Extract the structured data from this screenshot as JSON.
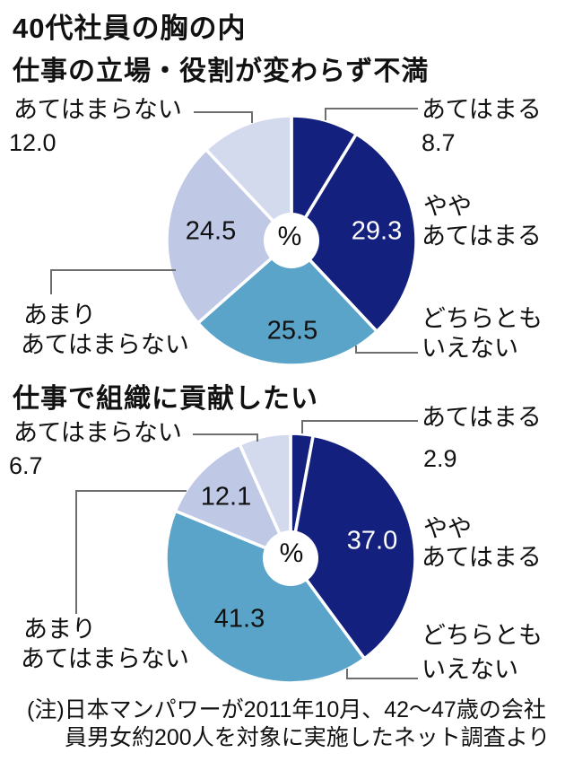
{
  "page": {
    "title": "40代社員の胸の内",
    "note": {
      "line1": "(注)日本マンパワーが2011年10月、42～47歳の会社",
      "line2": "員男女約200人を対象に実施したネット調査より"
    }
  },
  "palette": {
    "navy": "#14207e",
    "steel_blue": "#5ba4c9",
    "periwinkle": "#bfc9e6",
    "lavender": "#d4daee",
    "text": "#111111",
    "leader_line": "#6e6e6e",
    "divider": "#ffffff"
  },
  "chart_data": [
    {
      "type": "pie",
      "subtype": "donut",
      "title": "仕事の立場・役割が変わらず不満",
      "unit": "%",
      "center_label": "%",
      "start_angle_deg": 0,
      "direction": "clockwise",
      "categories": [
        "あてはまる",
        "ややあてはまる",
        "どちらともいえない",
        "あまりあてはまらない",
        "あてはまらない"
      ],
      "values": [
        8.7,
        29.3,
        25.5,
        24.5,
        12.0
      ],
      "value_labels": [
        "8.7",
        "29.3",
        "25.5",
        "24.5",
        "12.0"
      ],
      "slice_colors": [
        "#14207e",
        "#14207e",
        "#5ba4c9",
        "#bfc9e6",
        "#d4daee"
      ],
      "callout_lines": {
        "applies": [
          "あてはまる"
        ],
        "somewhat": [
          "やや",
          "あてはまる"
        ],
        "neither": [
          "どちらとも",
          "いえない"
        ],
        "not_much": [
          "あまり",
          "あてはまらない"
        ],
        "not_apply": [
          "あてはまらない"
        ]
      }
    },
    {
      "type": "pie",
      "subtype": "donut",
      "title": "仕事で組織に貢献したい",
      "unit": "%",
      "center_label": "%",
      "start_angle_deg": 0,
      "direction": "clockwise",
      "categories": [
        "あてはまる",
        "ややあてはまる",
        "どちらともいえない",
        "あまりあてはまらない",
        "あてはまらない"
      ],
      "values": [
        2.9,
        37.0,
        41.3,
        12.1,
        6.7
      ],
      "value_labels": [
        "2.9",
        "37.0",
        "41.3",
        "12.1",
        "6.7"
      ],
      "slice_colors": [
        "#14207e",
        "#14207e",
        "#5ba4c9",
        "#bfc9e6",
        "#d4daee"
      ],
      "callout_lines": {
        "applies": [
          "あてはまる"
        ],
        "somewhat": [
          "やや",
          "あてはまる"
        ],
        "neither": [
          "どちらとも",
          "いえない"
        ],
        "not_much": [
          "あまり",
          "あてはまらない"
        ],
        "not_apply": [
          "あてはまらない"
        ]
      }
    }
  ]
}
